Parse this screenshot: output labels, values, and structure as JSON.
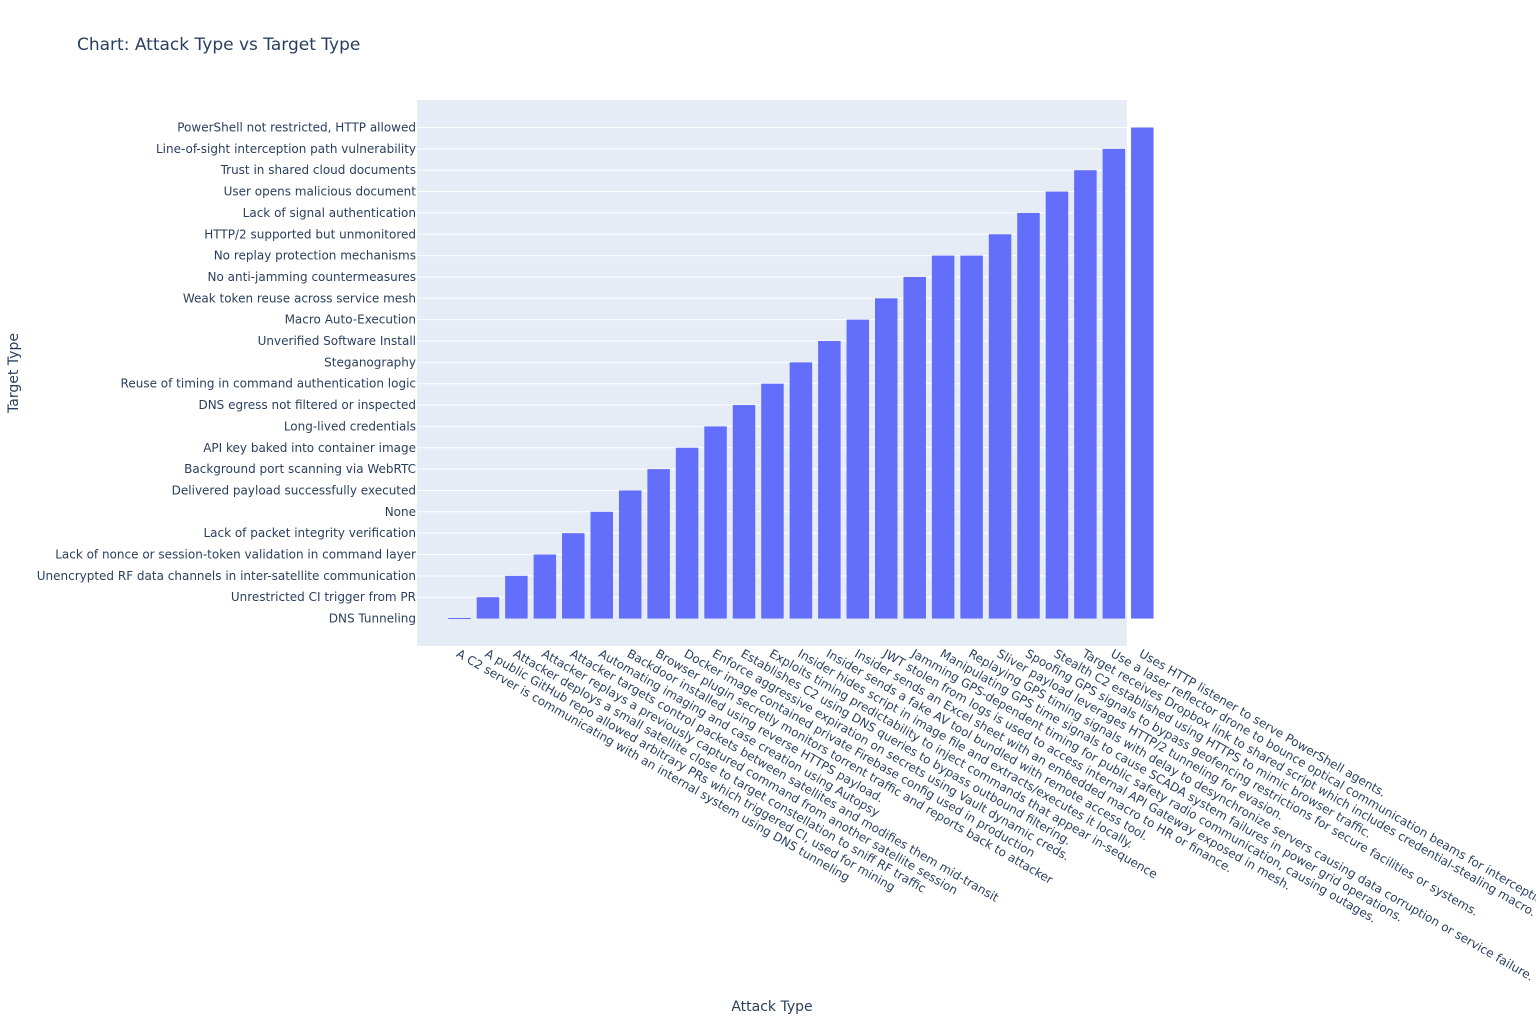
{
  "chart_data": {
    "type": "bar",
    "title": "Chart: Attack Type vs Target Type",
    "xlabel": "Attack Type",
    "ylabel": "Target Type",
    "grid": true,
    "y_categories": [
      "DNS Tunneling",
      "Unrestricted CI trigger from PR",
      "Unencrypted RF data channels in inter-satellite communication",
      "Lack of nonce or session-token validation in command layer",
      "Lack of packet integrity verification",
      "None",
      "Delivered payload successfully executed",
      "Background port scanning via WebRTC",
      "API key baked into container image",
      "Long-lived credentials",
      "DNS egress not filtered or inspected",
      "Reuse of timing in command authentication logic",
      "Steganography",
      "Unverified Software Install",
      "Macro Auto-Execution",
      "Weak token reuse across service mesh",
      "No anti-jamming countermeasures",
      "No replay protection mechanisms",
      "HTTP/2 supported but unmonitored",
      "Lack of signal authentication",
      "User opens malicious document",
      "Trust in shared cloud documents",
      "Line-of-sight interception path vulnerability",
      "PowerShell not restricted, HTTP allowed"
    ],
    "categories": [
      "A C2 server is communicating with an internal system using DNS tunneling",
      "A public GitHub repo allowed arbitrary PRs which triggered CI, used for mining",
      "Attacker deploys a small satellite close to target constellation to sniff RF traffic",
      "Attacker replays a previously captured command from another satellite session",
      "Attacker targets control packets between satellites and modifies them mid-transit",
      "Automating imaging and case creation using Autopsy",
      "Backdoor installed using reverse HTTPS payload.",
      "Browser plugin secretly monitors torrent traffic and reports back to attacker",
      "Docker image contained private Firebase config used in production",
      "Enforce aggressive expiration on secrets using Vault dynamic creds.",
      "Establishes C2 using DNS queries to bypass outbound filtering.",
      "Exploits timing predictability to inject commands that appear in-sequence",
      "Insider hides script in image file and extracts/executes it locally.",
      "Insider sends a fake AV tool bundled with remote access tool.",
      "Insider sends an Excel sheet with an embedded macro to HR or finance.",
      "JWT stolen from logs is used to access internal API Gateway exposed in mesh.",
      "Jamming GPS-dependent timing for public safety radio communication, causing outages.",
      "Manipulating GPS time signals to cause SCADA system failures in power grid operations.",
      "Replaying GPS timing signals with delay to desynchronize servers causing data corruption or service failure.",
      "Sliver payload leverages HTTP/2 tunneling for evasion.",
      "Spoofing GPS signals to bypass geofencing restrictions for secure facilities or systems.",
      "Stealth C2 established using HTTPS to mimic browser traffic.",
      "Target receives Dropbox link to shared script which includes credential-stealing macro.",
      "Use a laser reflector drone to bounce optical communication beams for interception",
      "Uses HTTP listener to serve PowerShell agents."
    ],
    "values": [
      "DNS Tunneling",
      "Unrestricted CI trigger from PR",
      "Unencrypted RF data channels in inter-satellite communication",
      "Lack of nonce or session-token validation in command layer",
      "Lack of packet integrity verification",
      "None",
      "Delivered payload successfully executed",
      "Background port scanning via WebRTC",
      "API key baked into container image",
      "Long-lived credentials",
      "DNS egress not filtered or inspected",
      "Reuse of timing in command authentication logic",
      "Steganography",
      "Unverified Software Install",
      "Macro Auto-Execution",
      "Weak token reuse across service mesh",
      "No anti-jamming countermeasures",
      "No replay protection mechanisms",
      "No replay protection mechanisms",
      "HTTP/2 supported but unmonitored",
      "Lack of signal authentication",
      "User opens malicious document",
      "Trust in shared cloud documents",
      "Line-of-sight interception path vulnerability",
      "PowerShell not restricted, HTTP allowed"
    ],
    "colors": {
      "bar": "#636efa",
      "plot_bg": "#e5ecf6",
      "grid": "#ffffff",
      "text": "#2a3f5f"
    }
  }
}
